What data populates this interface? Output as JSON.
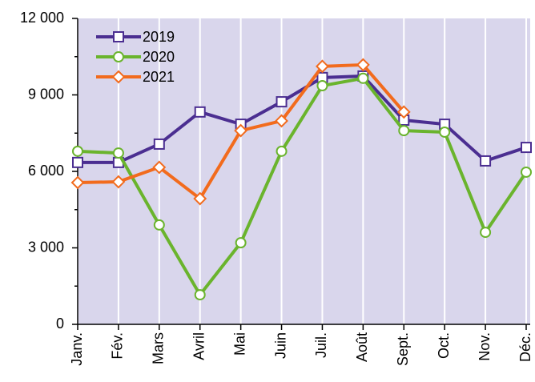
{
  "chart_data": {
    "type": "line",
    "categories": [
      "Janv.",
      "Fév.",
      "Mars",
      "Avril",
      "Mai",
      "Juin",
      "Juil.",
      "Août",
      "Sept.",
      "Oct.",
      "Nov.",
      "Déc."
    ],
    "series": [
      {
        "name": "2019",
        "color": "#4b2e91",
        "marker": "square",
        "values": [
          6350,
          6350,
          7070,
          8330,
          7850,
          8730,
          9680,
          9740,
          8010,
          7850,
          6410,
          6940
        ]
      },
      {
        "name": "2020",
        "color": "#6ab42d",
        "marker": "circle",
        "values": [
          6790,
          6720,
          3900,
          1160,
          3200,
          6790,
          9360,
          9650,
          7600,
          7540,
          3610,
          5970
        ]
      },
      {
        "name": "2021",
        "color": "#f26b1d",
        "marker": "diamond",
        "values": [
          5560,
          5590,
          6160,
          4930,
          7600,
          7980,
          10120,
          10180,
          8330,
          null,
          null,
          null
        ]
      }
    ],
    "ylim": [
      0,
      12000
    ],
    "yticks": [
      0,
      {
        "value": 3000,
        "label": "3 000"
      },
      {
        "value": 6000,
        "label": "6 000"
      },
      {
        "value": 9000,
        "label": "9 000"
      },
      {
        "value": 12000,
        "label": "12 000"
      }
    ],
    "grid": "vertical",
    "legend": "top-left"
  }
}
